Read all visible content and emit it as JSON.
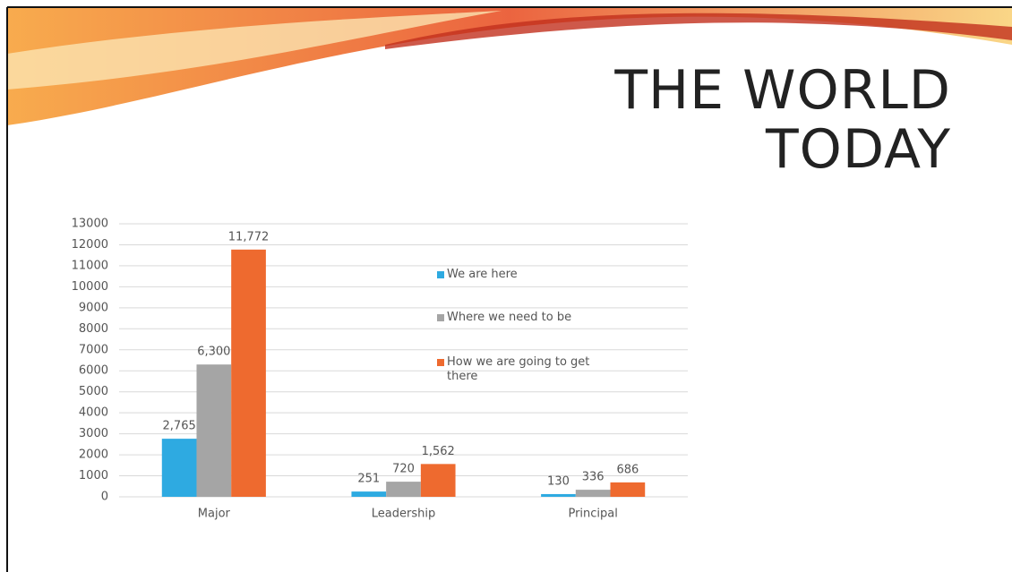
{
  "title": "THE WORLD TODAY",
  "chart_data": {
    "type": "bar",
    "categories": [
      "Major",
      "Leadership",
      "Principal"
    ],
    "series": [
      {
        "name": "We are here",
        "color": "#2eaae1",
        "values": [
          2765,
          251,
          130
        ],
        "value_labels": [
          "2,765",
          "251",
          "130"
        ]
      },
      {
        "name": "Where we need to be",
        "color": "#a5a5a5",
        "values": [
          6300,
          720,
          336
        ],
        "value_labels": [
          "6,300",
          "720",
          "336"
        ]
      },
      {
        "name": "How we are going to get there",
        "color": "#ee6a2f",
        "values": [
          11772,
          1562,
          686
        ],
        "value_labels": [
          "11,772",
          "1,562",
          "686"
        ]
      }
    ],
    "ylim": [
      0,
      13000
    ],
    "yticks": [
      0,
      1000,
      2000,
      3000,
      4000,
      5000,
      6000,
      7000,
      8000,
      9000,
      10000,
      11000,
      12000,
      13000
    ],
    "grid": true
  }
}
